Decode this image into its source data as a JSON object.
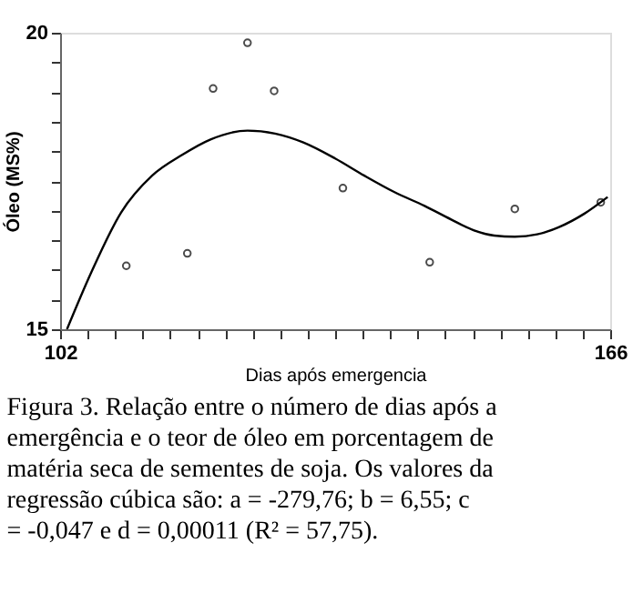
{
  "chart_data": {
    "type": "scatter",
    "xlabel": "Dias após emergencia",
    "ylabel": "Óleo (MS%)",
    "xlim": [
      102,
      166
    ],
    "ylim": [
      15,
      20
    ],
    "xticks": [
      102,
      {
        "value": 105.2,
        "label": null
      },
      {
        "value": 108.4,
        "label": null
      },
      {
        "value": 111.6,
        "label": null
      },
      {
        "value": 114.8,
        "label": null
      },
      {
        "value": 118,
        "label": null
      },
      {
        "value": 121.2,
        "label": null
      },
      {
        "value": 124.4,
        "label": null
      },
      {
        "value": 127.6,
        "label": null
      },
      {
        "value": 130.8,
        "label": null
      },
      {
        "value": 134,
        "label": null
      },
      {
        "value": 137.2,
        "label": null
      },
      {
        "value": 140.4,
        "label": null
      },
      {
        "value": 143.6,
        "label": null
      },
      {
        "value": 146.8,
        "label": null
      },
      {
        "value": 150,
        "label": null
      },
      {
        "value": 153.2,
        "label": null
      },
      {
        "value": 156.4,
        "label": null
      },
      {
        "value": 159.6,
        "label": null
      },
      {
        "value": 162.8,
        "label": null
      },
      166
    ],
    "yticks": [
      15,
      {
        "value": 15.5,
        "label": null
      },
      {
        "value": 16,
        "label": null
      },
      {
        "value": 16.5,
        "label": null
      },
      {
        "value": 17,
        "label": null
      },
      {
        "value": 17.5,
        "label": null
      },
      {
        "value": 18,
        "label": null
      },
      {
        "value": 18.5,
        "label": null
      },
      {
        "value": 19,
        "label": null
      },
      {
        "value": 19.5,
        "label": null
      },
      20
    ],
    "grid": false,
    "series": [
      {
        "marker": "circle",
        "color": "#000000",
        "x": [
          109.7,
          116.8,
          119.8,
          123.8,
          126.9,
          134.9,
          145.0,
          154.9,
          164.9
        ],
        "values": [
          16.07,
          16.28,
          19.06,
          19.83,
          19.02,
          17.38,
          16.13,
          17.03,
          17.14
        ]
      },
      {
        "type": "line",
        "line_style": "solid",
        "color": "#000000",
        "x": [
          102.8,
          105.6,
          109.1,
          112.7,
          116.2,
          119.5,
          123.8,
          127,
          130.3,
          134,
          137.4,
          140.8,
          144.4,
          147.5,
          150.1,
          152.5,
          154.9,
          157.5,
          160.0,
          163,
          165.7
        ],
        "values": [
          15.0,
          15.95,
          16.97,
          17.59,
          17.94,
          18.2,
          18.35,
          18.3,
          18.15,
          17.88,
          17.59,
          17.32,
          17.08,
          16.85,
          16.67,
          16.58,
          16.56,
          16.6,
          16.72,
          16.95,
          17.23
        ]
      }
    ],
    "annotations": [
      "Figura 3. Relação entre o número de dias após a emergência e o teor de óleo em porcentagem de matéria seca de sementes de soja. Os valores da regressão cúbica são: a = -279,76; b = 6,55; c = -0,047 e d = 0,00011 (R² = 57,75)."
    ]
  }
}
